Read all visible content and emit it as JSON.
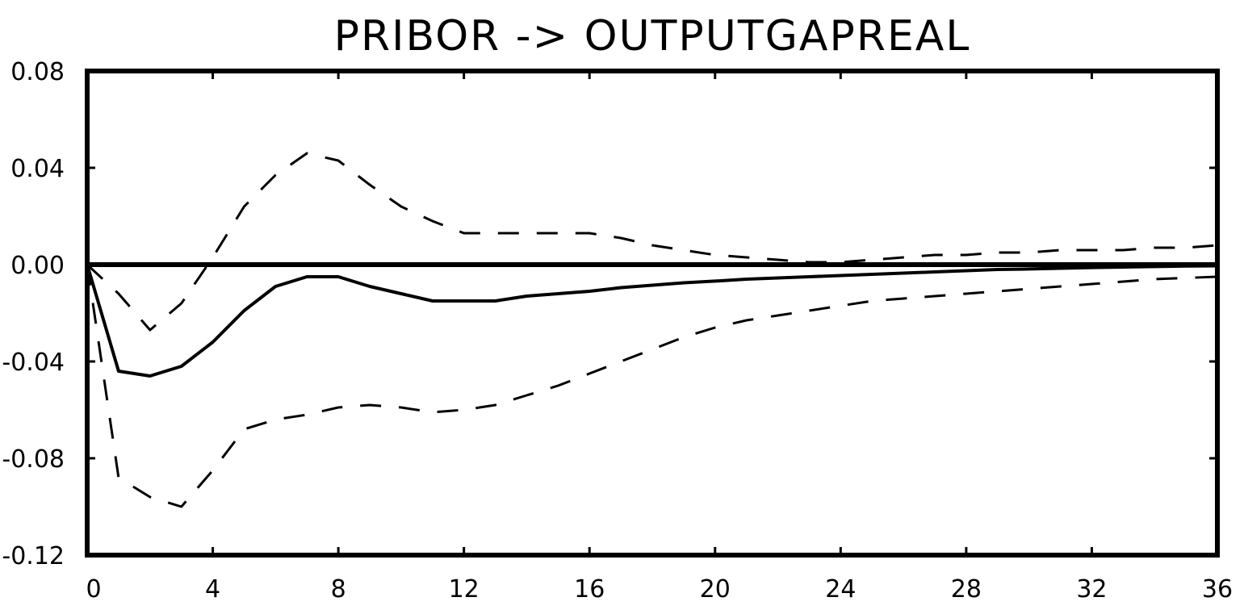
{
  "chart_data": {
    "type": "line",
    "title": "PRIBOR -> OUTPUTGAPREAL",
    "xlabel": "",
    "ylabel": "",
    "xlim": [
      0,
      36
    ],
    "ylim": [
      -0.12,
      0.08
    ],
    "x_ticks": [
      0,
      4,
      8,
      12,
      16,
      20,
      24,
      28,
      32,
      36
    ],
    "x_tick_labels": [
      "0",
      "4",
      "8",
      "12",
      "16",
      "20",
      "24",
      "28",
      "32",
      "36"
    ],
    "y_ticks": [
      0.08,
      0.04,
      0.0,
      -0.04,
      -0.08,
      -0.12
    ],
    "y_tick_labels": [
      "0.08",
      "0.04",
      "0.00",
      "-0.04",
      "-0.08",
      "-0.12"
    ],
    "zero_line": 0,
    "grid": false,
    "legend": "none",
    "series": [
      {
        "role": "response",
        "style": "solid",
        "x": [
          0,
          1,
          2,
          3,
          4,
          5,
          6,
          7,
          8,
          9,
          10,
          11,
          12,
          13,
          14,
          15,
          16,
          17,
          18,
          19,
          20,
          21,
          22,
          23,
          24,
          25,
          26,
          27,
          28,
          29,
          30,
          31,
          32,
          33,
          34,
          35,
          36
        ],
        "values": [
          0,
          -0.044,
          -0.046,
          -0.042,
          -0.032,
          -0.019,
          -0.009,
          -0.005,
          -0.005,
          -0.009,
          -0.012,
          -0.015,
          -0.015,
          -0.015,
          -0.013,
          -0.012,
          -0.011,
          -0.0095,
          -0.0085,
          -0.0075,
          -0.0068,
          -0.006,
          -0.0055,
          -0.005,
          -0.0045,
          -0.004,
          -0.0035,
          -0.003,
          -0.0025,
          -0.002,
          -0.0018,
          -0.0015,
          -0.0012,
          -0.001,
          -0.0008,
          -0.0006,
          -0.0005
        ]
      },
      {
        "role": "upper-band",
        "style": "dashed",
        "x": [
          0,
          1,
          2,
          3,
          4,
          5,
          6,
          7,
          8,
          9,
          10,
          11,
          12,
          13,
          14,
          15,
          16,
          17,
          18,
          19,
          20,
          21,
          22,
          23,
          24,
          25,
          26,
          27,
          28,
          29,
          30,
          31,
          32,
          33,
          34,
          35,
          36
        ],
        "values": [
          0,
          -0.012,
          -0.027,
          -0.016,
          0.003,
          0.024,
          0.037,
          0.046,
          0.043,
          0.033,
          0.024,
          0.018,
          0.013,
          0.013,
          0.013,
          0.013,
          0.013,
          0.011,
          0.008,
          0.006,
          0.004,
          0.003,
          0.002,
          0.001,
          0.001,
          0.002,
          0.003,
          0.004,
          0.004,
          0.005,
          0.005,
          0.006,
          0.006,
          0.006,
          0.007,
          0.007,
          0.008
        ]
      },
      {
        "role": "lower-band",
        "style": "dashed",
        "x": [
          0,
          1,
          2,
          3,
          4,
          5,
          6,
          7,
          8,
          9,
          10,
          11,
          12,
          13,
          14,
          15,
          16,
          17,
          18,
          19,
          20,
          21,
          22,
          23,
          24,
          25,
          26,
          27,
          28,
          29,
          30,
          31,
          32,
          33,
          34,
          35,
          36
        ],
        "values": [
          0,
          -0.088,
          -0.096,
          -0.1,
          -0.085,
          -0.068,
          -0.064,
          -0.062,
          -0.059,
          -0.058,
          -0.059,
          -0.061,
          -0.06,
          -0.058,
          -0.054,
          -0.05,
          -0.045,
          -0.04,
          -0.035,
          -0.03,
          -0.026,
          -0.023,
          -0.021,
          -0.019,
          -0.017,
          -0.015,
          -0.014,
          -0.013,
          -0.012,
          -0.011,
          -0.01,
          -0.009,
          -0.008,
          -0.007,
          -0.006,
          -0.0055,
          -0.005
        ]
      }
    ]
  }
}
